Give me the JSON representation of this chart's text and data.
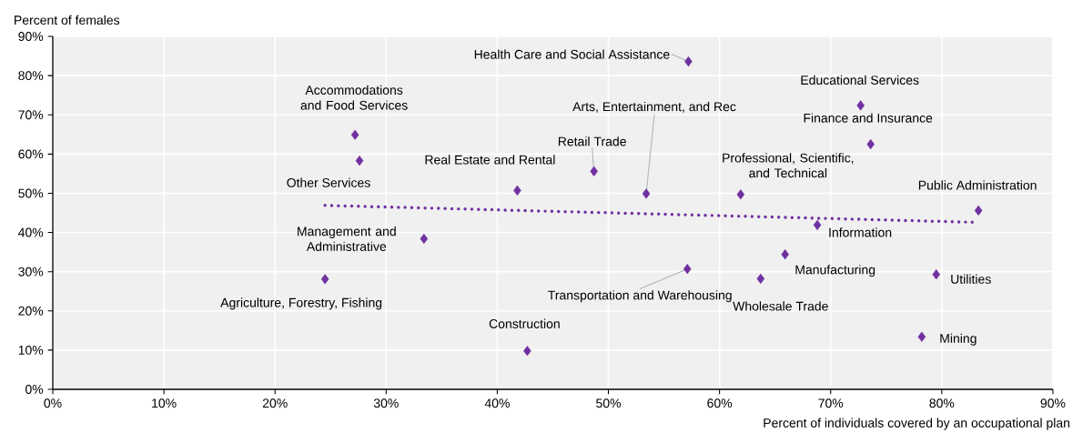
{
  "chart_data": {
    "type": "scatter",
    "xlabel": "Percent of individuals covered by an occupational plan",
    "ylabel": "Percent of females",
    "xlim": [
      0,
      90
    ],
    "ylim": [
      0,
      90
    ],
    "xticks": [
      {
        "value": 0,
        "label": "0%"
      },
      {
        "value": 10,
        "label": "10%"
      },
      {
        "value": 20,
        "label": "20%"
      },
      {
        "value": 30,
        "label": "30%"
      },
      {
        "value": 40,
        "label": "40%"
      },
      {
        "value": 50,
        "label": "50%"
      },
      {
        "value": 60,
        "label": "60%"
      },
      {
        "value": 70,
        "label": "70%"
      },
      {
        "value": 80,
        "label": "80%"
      },
      {
        "value": 90,
        "label": "90%"
      }
    ],
    "yticks": [
      {
        "value": 0,
        "label": "0%"
      },
      {
        "value": 10,
        "label": "10%"
      },
      {
        "value": 20,
        "label": "20%"
      },
      {
        "value": 30,
        "label": "30%"
      },
      {
        "value": 40,
        "label": "40%"
      },
      {
        "value": 50,
        "label": "50%"
      },
      {
        "value": 60,
        "label": "60%"
      },
      {
        "value": 70,
        "label": "70%"
      },
      {
        "value": 80,
        "label": "80%"
      },
      {
        "value": 90,
        "label": "90%"
      }
    ],
    "grid": true,
    "marker": "diamond",
    "series": [
      {
        "color": "#7030a0",
        "x": [
          57.2,
          72.7,
          73.6,
          27.2,
          27.6,
          41.8,
          48.7,
          53.4,
          61.9,
          83.3,
          68.8,
          33.4,
          65.9,
          57.1,
          63.7,
          79.5,
          24.5,
          78.2,
          42.7
        ],
        "values": [
          83.6,
          72.4,
          62.5,
          64.9,
          58.3,
          50.7,
          55.6,
          49.9,
          49.7,
          45.6,
          41.9,
          38.4,
          34.4,
          30.7,
          28.2,
          29.3,
          28.1,
          13.4,
          9.8
        ]
      },
      {
        "type": "line",
        "color": "#7030a0",
        "line_style": "dotted",
        "marker": "none",
        "x": [
          24.5,
          82.9
        ],
        "values": [
          46.9,
          42.6
        ]
      }
    ],
    "annotations": [
      {
        "text": "Health Care and Social Assistance",
        "x": 57.2,
        "y": 83.6
      },
      {
        "text": "Educational Services",
        "x": 72.7,
        "y": 72.4
      },
      {
        "text": "Finance and Insurance",
        "x": 73.6,
        "y": 62.5
      },
      {
        "text": "Accommodations and Food Services",
        "x": 27.2,
        "y": 64.9
      },
      {
        "text": "Other Services",
        "x": 27.6,
        "y": 58.3
      },
      {
        "text": "Real Estate and Rental",
        "x": 41.8,
        "y": 50.7
      },
      {
        "text": "Retail Trade",
        "x": 48.7,
        "y": 55.6
      },
      {
        "text": "Arts, Entertainment, and Rec",
        "x": 53.4,
        "y": 49.9
      },
      {
        "text": "Professional, Scientific, and Technical",
        "x": 61.9,
        "y": 49.7
      },
      {
        "text": "Public Administration",
        "x": 83.3,
        "y": 45.6
      },
      {
        "text": "Information",
        "x": 68.8,
        "y": 41.9
      },
      {
        "text": "Management and Administrative",
        "x": 33.4,
        "y": 38.4
      },
      {
        "text": "Manufacturing",
        "x": 65.9,
        "y": 34.4
      },
      {
        "text": "Transportation and Warehousing",
        "x": 57.1,
        "y": 30.7
      },
      {
        "text": "Wholesale Trade",
        "x": 63.7,
        "y": 28.2
      },
      {
        "text": "Utilities",
        "x": 79.5,
        "y": 29.3
      },
      {
        "text": "Agriculture, Forestry, Fishing",
        "x": 24.5,
        "y": 28.1
      },
      {
        "text": "Mining",
        "x": 78.2,
        "y": 13.4
      },
      {
        "text": "Construction",
        "x": 42.7,
        "y": 9.8
      }
    ]
  }
}
